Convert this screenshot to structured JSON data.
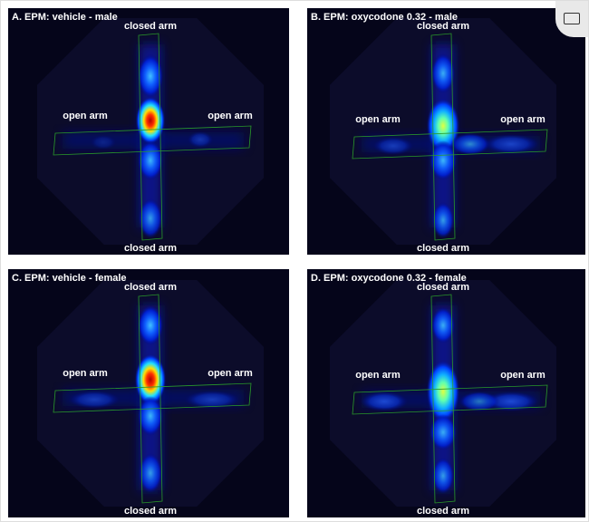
{
  "panels": [
    {
      "title": "A. EPM: vehicle - male",
      "top_label": "closed arm",
      "left_label": "open arm",
      "right_label": "open arm",
      "bottom_label": "closed arm"
    },
    {
      "title": "B. EPM: oxycodone 0.32 - male",
      "top_label": "closed arm",
      "left_label": "open arm",
      "right_label": "open arm",
      "bottom_label": "closed arm"
    },
    {
      "title": "C. EPM: vehicle - female",
      "top_label": "closed arm",
      "left_label": "open arm",
      "right_label": "open arm",
      "bottom_label": "closed arm"
    },
    {
      "title": "D. EPM: oxycodone 0.32 - female",
      "top_label": "closed arm",
      "left_label": "open arm",
      "right_label": "open arm",
      "bottom_label": "closed arm"
    }
  ]
}
